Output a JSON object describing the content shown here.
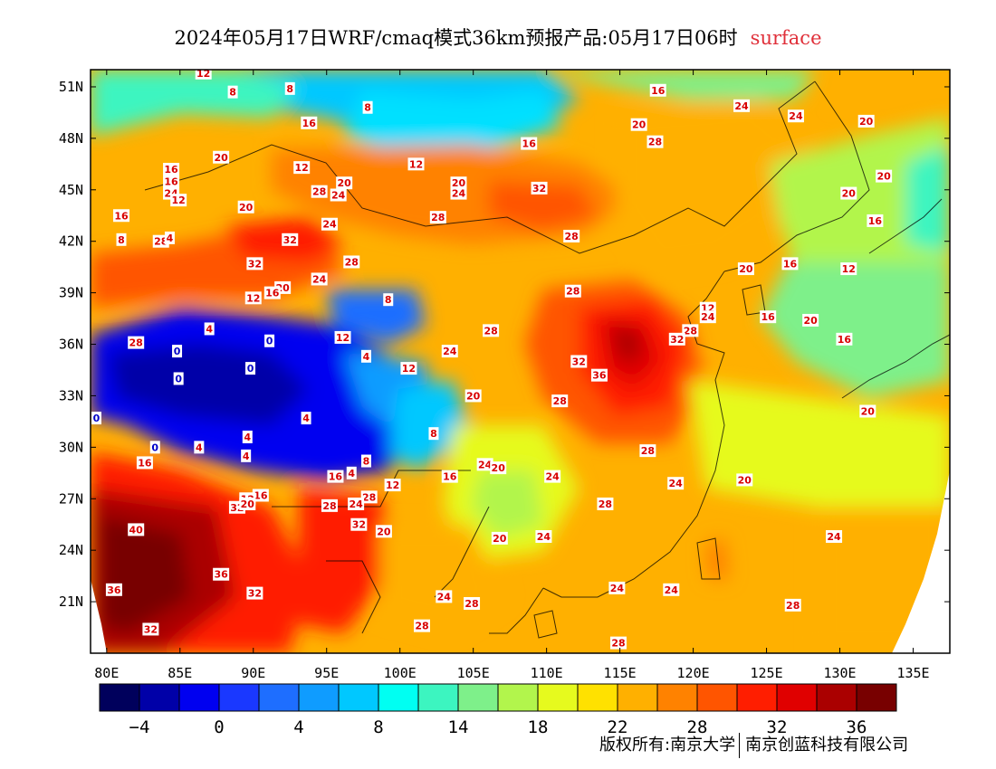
{
  "title": {
    "main": "2024年05月17日WRF/cmaq模式36km预报产品:05月17日06时",
    "level": "surface"
  },
  "map": {
    "lon_ticks": [
      "80E",
      "85E",
      "90E",
      "95E",
      "100E",
      "105E",
      "110E",
      "115E",
      "120E",
      "125E",
      "130E",
      "135E"
    ],
    "lat_ticks": [
      "51N",
      "48N",
      "45N",
      "42N",
      "39N",
      "36N",
      "33N",
      "30N",
      "27N",
      "24N",
      "21N"
    ],
    "lon_values": [
      80,
      85,
      90,
      95,
      100,
      105,
      110,
      115,
      120,
      125,
      130,
      135
    ],
    "lat_values": [
      51,
      48,
      45,
      42,
      39,
      36,
      33,
      30,
      27,
      24,
      21
    ],
    "lon_range": [
      78.9,
      137.5
    ],
    "lat_range": [
      18.0,
      52.0
    ],
    "contour_labels": [
      {
        "t": "12",
        "lon": 86.6,
        "lat": 51.8
      },
      {
        "t": "8",
        "lon": 88.6,
        "lat": 50.7
      },
      {
        "t": "8",
        "lon": 92.5,
        "lat": 50.9
      },
      {
        "t": "8",
        "lon": 97.8,
        "lat": 49.8
      },
      {
        "t": "16",
        "lon": 93.8,
        "lat": 48.9
      },
      {
        "t": "16",
        "lon": 117.6,
        "lat": 50.8
      },
      {
        "t": "24",
        "lon": 123.3,
        "lat": 49.9
      },
      {
        "t": "24",
        "lon": 127.0,
        "lat": 49.3
      },
      {
        "t": "20",
        "lon": 131.8,
        "lat": 49.0
      },
      {
        "t": "20",
        "lon": 116.3,
        "lat": 48.8
      },
      {
        "t": "28",
        "lon": 117.4,
        "lat": 47.8
      },
      {
        "t": "16",
        "lon": 108.8,
        "lat": 47.7
      },
      {
        "t": "20",
        "lon": 87.8,
        "lat": 46.9
      },
      {
        "t": "16",
        "lon": 84.4,
        "lat": 46.2
      },
      {
        "t": "12",
        "lon": 93.3,
        "lat": 46.3
      },
      {
        "t": "12",
        "lon": 101.1,
        "lat": 46.5
      },
      {
        "t": "16",
        "lon": 84.4,
        "lat": 45.5
      },
      {
        "t": "20",
        "lon": 96.2,
        "lat": 45.4
      },
      {
        "t": "20",
        "lon": 104.0,
        "lat": 45.4
      },
      {
        "t": "32",
        "lon": 109.5,
        "lat": 45.1
      },
      {
        "t": "24",
        "lon": 84.4,
        "lat": 44.8
      },
      {
        "t": "12",
        "lon": 84.9,
        "lat": 44.4
      },
      {
        "t": "28",
        "lon": 94.5,
        "lat": 44.9
      },
      {
        "t": "24",
        "lon": 95.8,
        "lat": 44.7
      },
      {
        "t": "24",
        "lon": 104.0,
        "lat": 44.8
      },
      {
        "t": "20",
        "lon": 130.6,
        "lat": 44.8
      },
      {
        "t": "20",
        "lon": 133.0,
        "lat": 45.8
      },
      {
        "t": "20",
        "lon": 89.5,
        "lat": 44.0
      },
      {
        "t": "16",
        "lon": 81.0,
        "lat": 43.5
      },
      {
        "t": "28",
        "lon": 102.6,
        "lat": 43.4
      },
      {
        "t": "24",
        "lon": 95.2,
        "lat": 43.0
      },
      {
        "t": "16",
        "lon": 132.4,
        "lat": 43.2
      },
      {
        "t": "8",
        "lon": 81.0,
        "lat": 42.1
      },
      {
        "t": "28",
        "lon": 83.7,
        "lat": 42.0
      },
      {
        "t": "4",
        "lon": 84.3,
        "lat": 42.2
      },
      {
        "t": "32",
        "lon": 92.5,
        "lat": 42.1
      },
      {
        "t": "28",
        "lon": 111.7,
        "lat": 42.3
      },
      {
        "t": "28",
        "lon": 96.7,
        "lat": 40.8
      },
      {
        "t": "32",
        "lon": 90.1,
        "lat": 40.7
      },
      {
        "t": "20",
        "lon": 123.6,
        "lat": 40.4
      },
      {
        "t": "16",
        "lon": 126.6,
        "lat": 40.7
      },
      {
        "t": "12",
        "lon": 130.6,
        "lat": 40.4
      },
      {
        "t": "24",
        "lon": 94.5,
        "lat": 39.8
      },
      {
        "t": "20",
        "lon": 92.0,
        "lat": 39.3
      },
      {
        "t": "16",
        "lon": 91.3,
        "lat": 39.0
      },
      {
        "t": "12",
        "lon": 90.0,
        "lat": 38.7
      },
      {
        "t": "8",
        "lon": 99.2,
        "lat": 38.6
      },
      {
        "t": "28",
        "lon": 111.8,
        "lat": 39.1
      },
      {
        "t": "12",
        "lon": 121.0,
        "lat": 38.1
      },
      {
        "t": "24",
        "lon": 121.0,
        "lat": 37.6
      },
      {
        "t": "16",
        "lon": 125.1,
        "lat": 37.6
      },
      {
        "t": "20",
        "lon": 128.0,
        "lat": 37.4
      },
      {
        "t": "4",
        "lon": 87.0,
        "lat": 36.9
      },
      {
        "t": "28",
        "lon": 82.0,
        "lat": 36.1
      },
      {
        "t": "12",
        "lon": 96.1,
        "lat": 36.4
      },
      {
        "t": "0",
        "lon": 84.8,
        "lat": 35.6
      },
      {
        "t": "0",
        "lon": 91.1,
        "lat": 36.2
      },
      {
        "t": "4",
        "lon": 97.7,
        "lat": 35.3
      },
      {
        "t": "28",
        "lon": 106.2,
        "lat": 36.8
      },
      {
        "t": "24",
        "lon": 103.4,
        "lat": 35.6
      },
      {
        "t": "28",
        "lon": 119.8,
        "lat": 36.8
      },
      {
        "t": "32",
        "lon": 118.9,
        "lat": 36.3
      },
      {
        "t": "16",
        "lon": 130.3,
        "lat": 36.3
      },
      {
        "t": "32",
        "lon": 112.2,
        "lat": 35.0
      },
      {
        "t": "36",
        "lon": 113.6,
        "lat": 34.2
      },
      {
        "t": "0",
        "lon": 89.8,
        "lat": 34.6
      },
      {
        "t": "0",
        "lon": 84.9,
        "lat": 34.0
      },
      {
        "t": "12",
        "lon": 100.6,
        "lat": 34.6
      },
      {
        "t": "20",
        "lon": 105.0,
        "lat": 33.0
      },
      {
        "t": "28",
        "lon": 110.9,
        "lat": 32.7
      },
      {
        "t": "20",
        "lon": 131.9,
        "lat": 32.1
      },
      {
        "t": "0",
        "lon": 79.3,
        "lat": 31.7
      },
      {
        "t": "4",
        "lon": 93.6,
        "lat": 31.7
      },
      {
        "t": "8",
        "lon": 102.3,
        "lat": 30.8
      },
      {
        "t": "4",
        "lon": 89.6,
        "lat": 30.6
      },
      {
        "t": "0",
        "lon": 83.3,
        "lat": 30.0
      },
      {
        "t": "4",
        "lon": 86.3,
        "lat": 30.0
      },
      {
        "t": "4",
        "lon": 89.5,
        "lat": 29.5
      },
      {
        "t": "28",
        "lon": 116.9,
        "lat": 29.8
      },
      {
        "t": "16",
        "lon": 82.6,
        "lat": 29.1
      },
      {
        "t": "8",
        "lon": 97.7,
        "lat": 29.2
      },
      {
        "t": "24",
        "lon": 105.8,
        "lat": 29.0
      },
      {
        "t": "20",
        "lon": 106.7,
        "lat": 28.8
      },
      {
        "t": "24",
        "lon": 110.4,
        "lat": 28.3
      },
      {
        "t": "16",
        "lon": 95.6,
        "lat": 28.3
      },
      {
        "t": "4",
        "lon": 96.7,
        "lat": 28.5
      },
      {
        "t": "12",
        "lon": 99.5,
        "lat": 27.8
      },
      {
        "t": "16",
        "lon": 103.4,
        "lat": 28.3
      },
      {
        "t": "24",
        "lon": 118.8,
        "lat": 27.9
      },
      {
        "t": "20",
        "lon": 123.5,
        "lat": 28.1
      },
      {
        "t": "16",
        "lon": 90.5,
        "lat": 27.2
      },
      {
        "t": "12",
        "lon": 89.6,
        "lat": 27.0
      },
      {
        "t": "28",
        "lon": 97.9,
        "lat": 27.1
      },
      {
        "t": "24",
        "lon": 97.0,
        "lat": 26.7
      },
      {
        "t": "28",
        "lon": 95.2,
        "lat": 26.6
      },
      {
        "t": "32",
        "lon": 88.9,
        "lat": 26.5
      },
      {
        "t": "20",
        "lon": 89.6,
        "lat": 26.7
      },
      {
        "t": "28",
        "lon": 114.0,
        "lat": 26.7
      },
      {
        "t": "40",
        "lon": 82.0,
        "lat": 25.2
      },
      {
        "t": "32",
        "lon": 97.2,
        "lat": 25.5
      },
      {
        "t": "20",
        "lon": 98.9,
        "lat": 25.1
      },
      {
        "t": "20",
        "lon": 106.8,
        "lat": 24.7
      },
      {
        "t": "24",
        "lon": 109.8,
        "lat": 24.8
      },
      {
        "t": "24",
        "lon": 129.6,
        "lat": 24.8
      },
      {
        "t": "36",
        "lon": 87.8,
        "lat": 22.6
      },
      {
        "t": "36",
        "lon": 80.5,
        "lat": 21.7
      },
      {
        "t": "32",
        "lon": 90.1,
        "lat": 21.5
      },
      {
        "t": "24",
        "lon": 103.0,
        "lat": 21.3
      },
      {
        "t": "28",
        "lon": 104.9,
        "lat": 20.9
      },
      {
        "t": "24",
        "lon": 114.8,
        "lat": 21.8
      },
      {
        "t": "24",
        "lon": 118.5,
        "lat": 21.7
      },
      {
        "t": "28",
        "lon": 126.8,
        "lat": 20.8
      },
      {
        "t": "28",
        "lon": 101.5,
        "lat": 19.6
      },
      {
        "t": "32",
        "lon": 83.0,
        "lat": 19.4
      },
      {
        "t": "28",
        "lon": 114.9,
        "lat": 18.6
      }
    ]
  },
  "colorbar": {
    "tick_labels": [
      "−4",
      "0",
      "4",
      "8",
      "14",
      "18",
      "22",
      "28",
      "32",
      "36"
    ],
    "colors": [
      "#00005c",
      "#0000a8",
      "#0000f0",
      "#1a38ff",
      "#1e6eff",
      "#0f9cff",
      "#00c8ff",
      "#00fff2",
      "#3cf5c0",
      "#7ef08a",
      "#b2f54c",
      "#e6fa1e",
      "#ffe100",
      "#ffb000",
      "#ff8200",
      "#ff5500",
      "#ff1e00",
      "#e00000",
      "#aa0000",
      "#780000"
    ]
  },
  "copyright": {
    "owner": "版权所有:南京大学",
    "company": "南京创蓝科技有限公司"
  }
}
